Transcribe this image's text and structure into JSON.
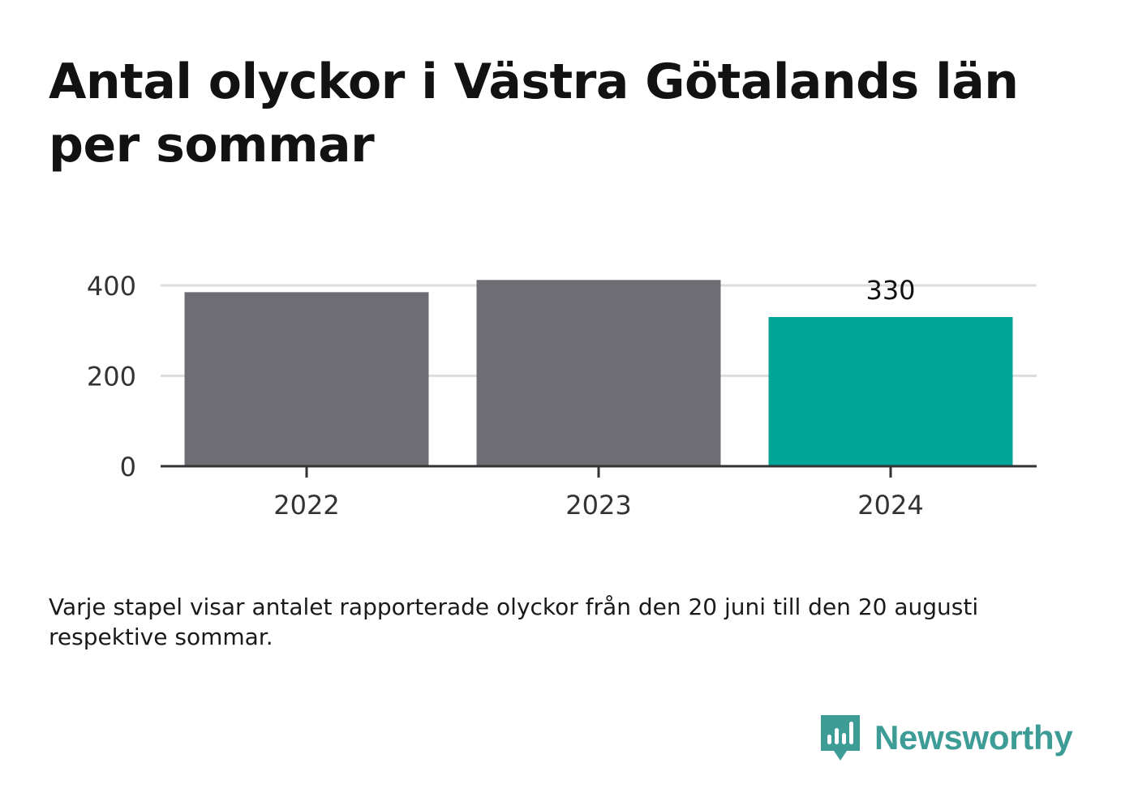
{
  "header": {
    "title": "Antal olyckor i Västra Götalands län per sommar"
  },
  "footer": {
    "note": "Varje stapel visar antalet rapporterade olyckor från den 20 juni till den 20 augusti respektive sommar.",
    "brand": "Newsworthy"
  },
  "colors": {
    "bar_default": "#6e6d73",
    "bar_highlight": "#00a598",
    "brand": "#3d9c95",
    "grid": "#dddddd",
    "axis": "#333333"
  },
  "chart_data": {
    "type": "bar",
    "categories": [
      "2022",
      "2023",
      "2024"
    ],
    "values": [
      385,
      412,
      330
    ],
    "highlight_index": 2,
    "data_labels": [
      null,
      null,
      "330"
    ],
    "yticks": [
      0,
      200,
      400
    ],
    "ylim": [
      0,
      400
    ],
    "grid": true,
    "legend": "none"
  }
}
